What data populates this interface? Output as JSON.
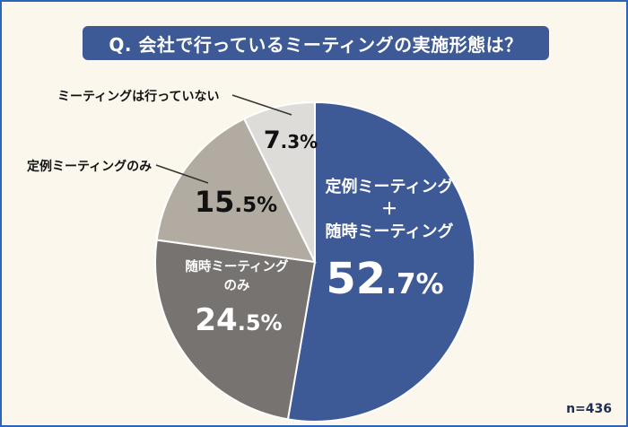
{
  "header": {
    "title": "Q. 会社で行っているミーティングの実施形態は？"
  },
  "footer": {
    "n_label": "n=436"
  },
  "colors": {
    "background": "#fbf7ec",
    "border": "#2a66b5",
    "banner": "#3d5a96"
  },
  "chart_data": {
    "type": "pie",
    "title": "Q. 会社で行っているミーティングの実施形態は？",
    "sample_size": "n=436",
    "start_angle_deg": 0,
    "direction": "clockwise",
    "legend_position": "none",
    "slices": [
      {
        "label": "定例ミーティング＋随時ミーティング",
        "label_lines": [
          "定例ミーティング",
          "＋",
          "随時ミーティング"
        ],
        "value": 52.7,
        "color": "#3d5a96",
        "text_color": "#ffffff",
        "label_placement": "inside"
      },
      {
        "label": "随時ミーティングのみ",
        "label_lines": [
          "随時ミーティング",
          "のみ"
        ],
        "value": 24.5,
        "color": "#767370",
        "text_color": "#ffffff",
        "label_placement": "inside"
      },
      {
        "label": "定例ミーティングのみ",
        "value": 15.5,
        "color": "#b1aba2",
        "text_color": "#111111",
        "label_placement": "outside"
      },
      {
        "label": "ミーティングは行っていない",
        "value": 7.3,
        "color": "#dedcd9",
        "text_color": "#111111",
        "label_placement": "outside"
      }
    ]
  }
}
